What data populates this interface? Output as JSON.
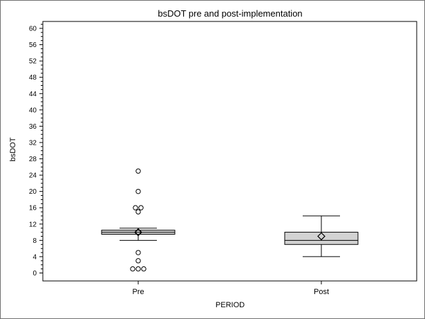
{
  "chart_data": {
    "type": "box",
    "title": "bsDOT pre and post-implementation",
    "xlabel": "PERIOD",
    "ylabel": "bsDOT",
    "ylim": [
      0,
      62
    ],
    "yticks": [
      0,
      4,
      8,
      12,
      16,
      20,
      24,
      28,
      32,
      36,
      40,
      44,
      48,
      52,
      56,
      60
    ],
    "categories": [
      "Pre",
      "Post"
    ],
    "groups": [
      {
        "name": "Pre",
        "whisker_low": 8,
        "q1": 9.5,
        "median": 10,
        "q3": 10.5,
        "whisker_high": 11,
        "mean": 10,
        "outliers": [
          25,
          20,
          16,
          16,
          15,
          10,
          5,
          3,
          1,
          1,
          1
        ]
      },
      {
        "name": "Post",
        "whisker_low": 4,
        "q1": 7,
        "median": 8,
        "q3": 10,
        "whisker_high": 14,
        "mean": 9,
        "outliers": []
      }
    ],
    "colors": {
      "box_fill": "#d3d3d3",
      "line": "#000000"
    },
    "grid": false,
    "legend": "none"
  }
}
